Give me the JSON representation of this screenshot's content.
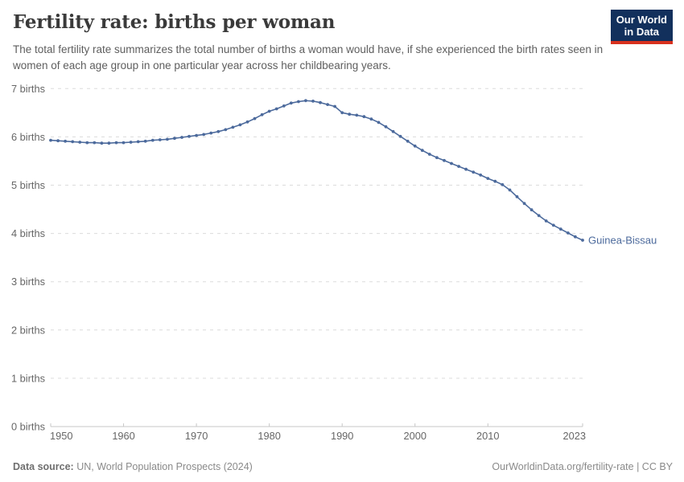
{
  "header": {
    "title": "Fertility rate: births per woman",
    "subtitle": "The total fertility rate summarizes the total number of births a woman would have, if she experienced the birth rates seen in women of each age group in one particular year across her childbearing years.",
    "logo": {
      "line1": "Our World",
      "line2": "in Data"
    }
  },
  "chart_data": {
    "type": "line",
    "title": "Fertility rate: births per woman",
    "entity_label": "Guinea-Bissau",
    "x": [
      1950,
      1951,
      1952,
      1953,
      1954,
      1955,
      1956,
      1957,
      1958,
      1959,
      1960,
      1961,
      1962,
      1963,
      1964,
      1965,
      1966,
      1967,
      1968,
      1969,
      1970,
      1971,
      1972,
      1973,
      1974,
      1975,
      1976,
      1977,
      1978,
      1979,
      1980,
      1981,
      1982,
      1983,
      1984,
      1985,
      1986,
      1987,
      1988,
      1989,
      1990,
      1991,
      1992,
      1993,
      1994,
      1995,
      1996,
      1997,
      1998,
      1999,
      2000,
      2001,
      2002,
      2003,
      2004,
      2005,
      2006,
      2007,
      2008,
      2009,
      2010,
      2011,
      2012,
      2013,
      2014,
      2015,
      2016,
      2017,
      2018,
      2019,
      2020,
      2021,
      2022,
      2023
    ],
    "series": [
      {
        "name": "Guinea-Bissau",
        "color": "#4c6a9c",
        "values": [
          5.93,
          5.92,
          5.91,
          5.9,
          5.89,
          5.88,
          5.88,
          5.87,
          5.87,
          5.88,
          5.88,
          5.89,
          5.9,
          5.91,
          5.93,
          5.94,
          5.95,
          5.97,
          5.99,
          6.01,
          6.03,
          6.05,
          6.08,
          6.11,
          6.15,
          6.2,
          6.25,
          6.31,
          6.38,
          6.46,
          6.53,
          6.58,
          6.64,
          6.7,
          6.73,
          6.75,
          6.74,
          6.71,
          6.67,
          6.63,
          6.5,
          6.47,
          6.45,
          6.42,
          6.37,
          6.3,
          6.21,
          6.11,
          6.01,
          5.91,
          5.81,
          5.72,
          5.64,
          5.57,
          5.51,
          5.45,
          5.39,
          5.33,
          5.27,
          5.21,
          5.14,
          5.08,
          5.01,
          4.9,
          4.76,
          4.62,
          4.49,
          4.37,
          4.26,
          4.17,
          4.09,
          4.01,
          3.93,
          3.86
        ]
      }
    ],
    "xticks": [
      1950,
      1960,
      1970,
      1980,
      1990,
      2000,
      2010,
      2023
    ],
    "yticks": [
      0,
      1,
      2,
      3,
      4,
      5,
      6,
      7
    ],
    "ytick_suffix": " births",
    "ylim": [
      0,
      7.3
    ],
    "xlabel": "",
    "ylabel": "",
    "grid": "horizontal-dashed",
    "legend_position": "end-of-line"
  },
  "footer": {
    "source_label": "Data source:",
    "source_text": " UN, World Population Prospects (2024)",
    "right_text": "OurWorldinData.org/fertility-rate | CC BY"
  },
  "colors": {
    "line": "#4c6a9c",
    "entity_label": "#4c6a9c",
    "gridline": "#dcdcdc",
    "axis": "#c7c7c7",
    "tick_label": "#666666",
    "title": "#3a3a3a",
    "subtitle": "#5e5e5e",
    "footer": "#8a8a8a",
    "logo_bg": "#12305c",
    "logo_bar": "#d8311e"
  }
}
